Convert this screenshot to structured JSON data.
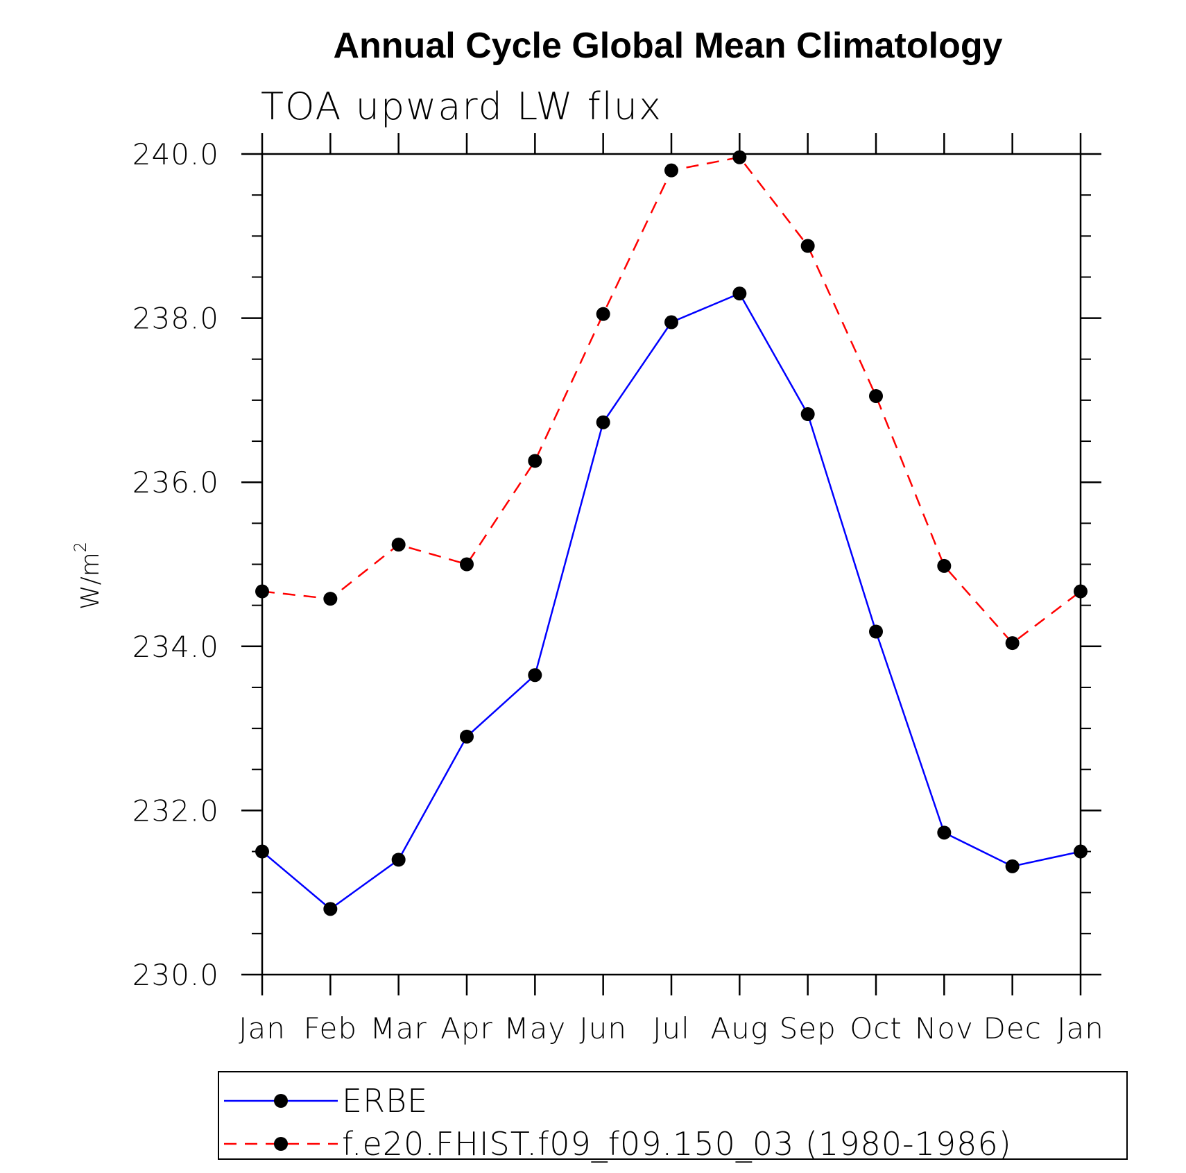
{
  "chart_data": {
    "type": "line",
    "title": "Annual Cycle Global Mean Climatology",
    "subtitle": "TOA upward LW flux",
    "xlabel": "",
    "ylabel": "W/m",
    "ylabel_superscript": "2",
    "categories": [
      "Jan",
      "Feb",
      "Mar",
      "Apr",
      "May",
      "Jun",
      "Jul",
      "Aug",
      "Sep",
      "Oct",
      "Nov",
      "Dec",
      "Jan"
    ],
    "ylim": [
      230.0,
      240.0
    ],
    "yticks": [
      "230.0",
      "232.0",
      "234.0",
      "236.0",
      "238.0",
      "240.0"
    ],
    "grid": false,
    "legend_position": "bottom",
    "series": [
      {
        "name": "ERBE",
        "color": "#0000ff",
        "line_style": "solid",
        "marker": "filled-circle",
        "values": [
          231.5,
          230.8,
          231.4,
          232.9,
          233.65,
          236.73,
          237.95,
          238.3,
          236.83,
          234.18,
          231.73,
          231.32,
          231.5
        ]
      },
      {
        "name": "f.e20.FHIST.f09_f09.150_03 (1980-1986)",
        "color": "#ff0000",
        "line_style": "dashed",
        "marker": "filled-circle",
        "values": [
          234.67,
          234.58,
          235.24,
          235.0,
          236.26,
          238.05,
          239.8,
          239.96,
          238.88,
          237.05,
          234.98,
          234.04,
          234.67
        ]
      }
    ]
  }
}
